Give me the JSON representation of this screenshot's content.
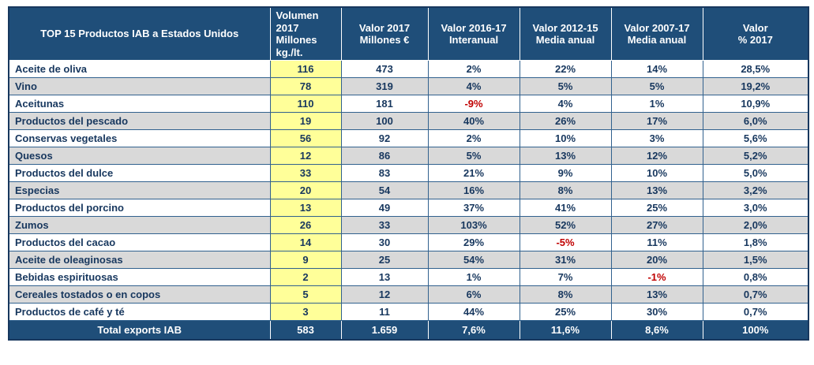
{
  "colors": {
    "header_bg": "#1F4E79",
    "header_text": "#FFFFFF",
    "body_text": "#17375E",
    "negative_text": "#C00000",
    "volume_column_bg": "#FFFF99",
    "row_alt_bg": "#D9D9D9",
    "total_row_bg": "#1F4E79",
    "grid_border": "#31618E"
  },
  "chart_data": {
    "type": "table",
    "title": "TOP 15 Productos IAB a Estados Unidos",
    "columns": [
      "TOP 15 Productos IAB a Estados Unidos",
      "Volumen\n2017\nMillones\nkg./lt.",
      "Valor 2017\nMillones €",
      "Valor 2016-17\nInteranual",
      "Valor 2012-15\nMedia anual",
      "Valor 2007-17\nMedia anual",
      "Valor\n% 2017"
    ],
    "rows": [
      {
        "producto": "Aceite de oliva",
        "volumen": "116",
        "valor_2017": "473",
        "interanual": "2%",
        "media_2012_15": "22%",
        "media_2007_17": "14%",
        "pct_2017": "28,5%"
      },
      {
        "producto": "Vino",
        "volumen": "78",
        "valor_2017": "319",
        "interanual": "4%",
        "media_2012_15": "5%",
        "media_2007_17": "5%",
        "pct_2017": "19,2%"
      },
      {
        "producto": "Aceitunas",
        "volumen": "110",
        "valor_2017": "181",
        "interanual": "-9%",
        "media_2012_15": "4%",
        "media_2007_17": "1%",
        "pct_2017": "10,9%"
      },
      {
        "producto": "Productos del pescado",
        "volumen": "19",
        "valor_2017": "100",
        "interanual": "40%",
        "media_2012_15": "26%",
        "media_2007_17": "17%",
        "pct_2017": "6,0%"
      },
      {
        "producto": "Conservas vegetales",
        "volumen": "56",
        "valor_2017": "92",
        "interanual": "2%",
        "media_2012_15": "10%",
        "media_2007_17": "3%",
        "pct_2017": "5,6%"
      },
      {
        "producto": "Quesos",
        "volumen": "12",
        "valor_2017": "86",
        "interanual": "5%",
        "media_2012_15": "13%",
        "media_2007_17": "12%",
        "pct_2017": "5,2%"
      },
      {
        "producto": "Productos del dulce",
        "volumen": "33",
        "valor_2017": "83",
        "interanual": "21%",
        "media_2012_15": "9%",
        "media_2007_17": "10%",
        "pct_2017": "5,0%"
      },
      {
        "producto": "Especias",
        "volumen": "20",
        "valor_2017": "54",
        "interanual": "16%",
        "media_2012_15": "8%",
        "media_2007_17": "13%",
        "pct_2017": "3,2%"
      },
      {
        "producto": "Productos del porcino",
        "volumen": "13",
        "valor_2017": "49",
        "interanual": "37%",
        "media_2012_15": "41%",
        "media_2007_17": "25%",
        "pct_2017": "3,0%"
      },
      {
        "producto": "Zumos",
        "volumen": "26",
        "valor_2017": "33",
        "interanual": "103%",
        "media_2012_15": "52%",
        "media_2007_17": "27%",
        "pct_2017": "2,0%"
      },
      {
        "producto": "Productos del cacao",
        "volumen": "14",
        "valor_2017": "30",
        "interanual": "29%",
        "media_2012_15": "-5%",
        "media_2007_17": "11%",
        "pct_2017": "1,8%"
      },
      {
        "producto": "Aceite de oleaginosas",
        "volumen": "9",
        "valor_2017": "25",
        "interanual": "54%",
        "media_2012_15": "31%",
        "media_2007_17": "20%",
        "pct_2017": "1,5%"
      },
      {
        "producto": "Bebidas espirituosas",
        "volumen": "2",
        "valor_2017": "13",
        "interanual": "1%",
        "media_2012_15": "7%",
        "media_2007_17": "-1%",
        "pct_2017": "0,8%"
      },
      {
        "producto": "Cereales tostados o en copos",
        "volumen": "5",
        "valor_2017": "12",
        "interanual": "6%",
        "media_2012_15": "8%",
        "media_2007_17": "13%",
        "pct_2017": "0,7%"
      },
      {
        "producto": "Productos de café y té",
        "volumen": "3",
        "valor_2017": "11",
        "interanual": "44%",
        "media_2012_15": "25%",
        "media_2007_17": "30%",
        "pct_2017": "0,7%"
      }
    ],
    "total": {
      "label": "Total exports IAB",
      "volumen": "583",
      "valor_2017": "1.659",
      "interanual": "7,6%",
      "media_2012_15": "11,6%",
      "media_2007_17": "8,6%",
      "pct_2017": "100%"
    }
  }
}
